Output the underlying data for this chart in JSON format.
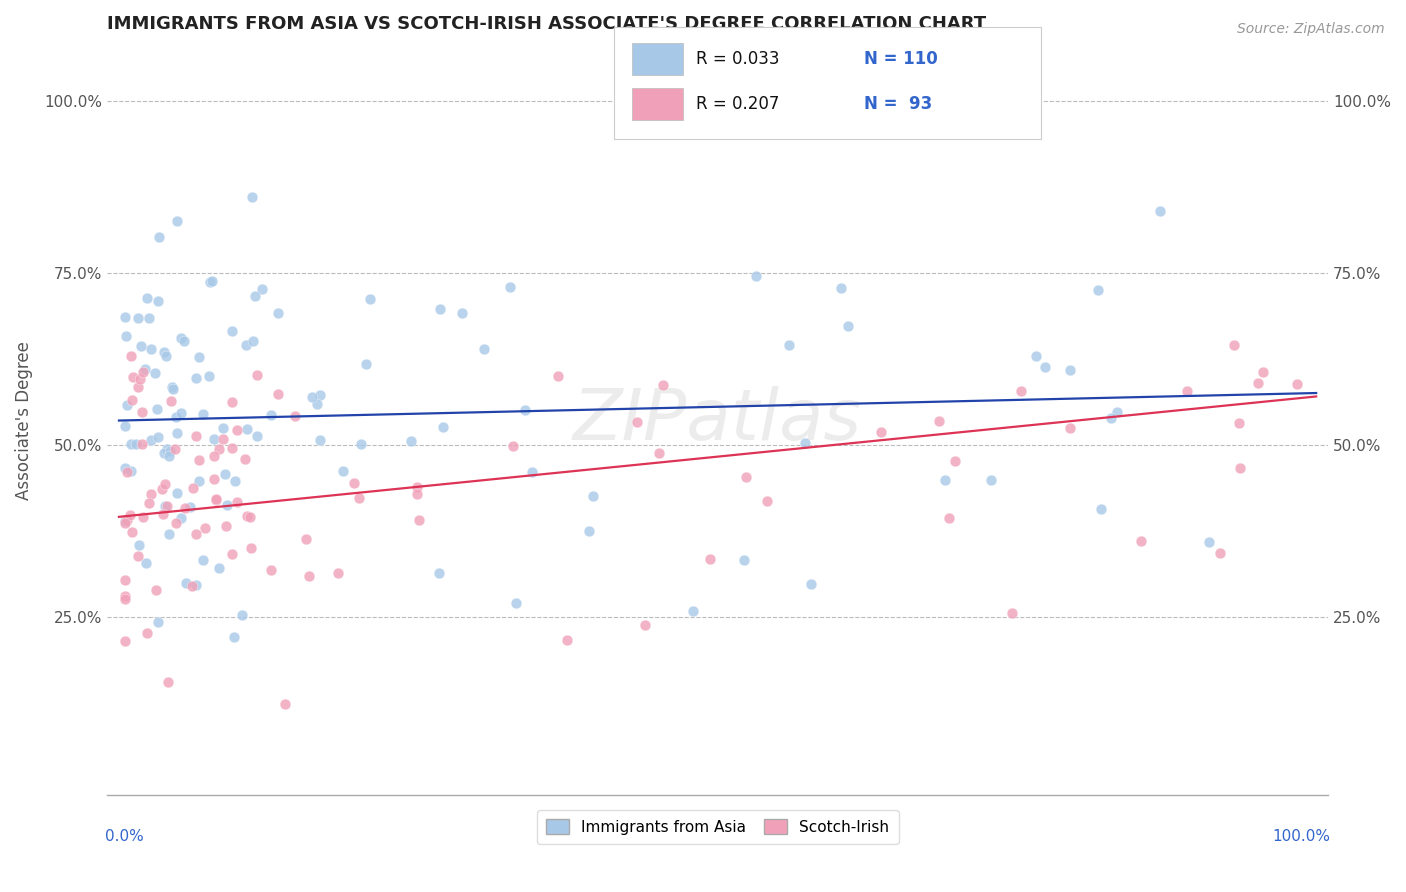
{
  "title": "IMMIGRANTS FROM ASIA VS SCOTCH-IRISH ASSOCIATE'S DEGREE CORRELATION CHART",
  "source": "Source: ZipAtlas.com",
  "ylabel": "Associate's Degree",
  "blue_color": "#A8C8E8",
  "pink_color": "#F0A0B8",
  "blue_line_color": "#2244AA",
  "pink_line_color": "#DD3355",
  "background_color": "#FFFFFF",
  "grid_color": "#BBBBBB",
  "title_color": "#222222",
  "watermark": "ZIPatlas",
  "figsize": [
    14.06,
    8.92
  ],
  "dpi": 100,
  "blue_intercept": 0.535,
  "blue_slope": 0.04,
  "pink_intercept": 0.395,
  "pink_slope": 0.175
}
